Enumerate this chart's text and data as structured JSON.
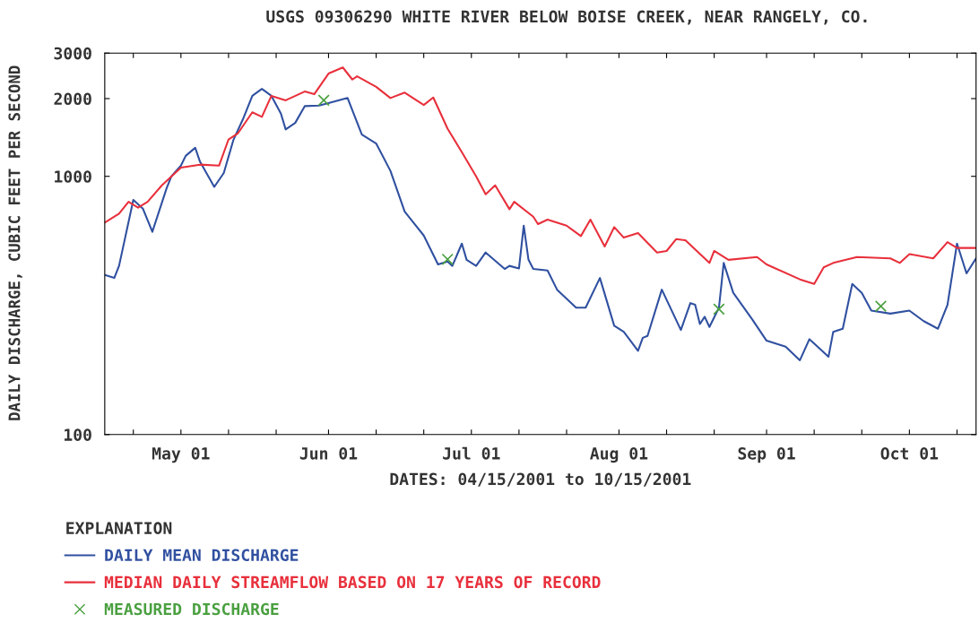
{
  "chart_data": {
    "type": "line",
    "title": "USGS 09306290 WHITE RIVER BELOW BOISE CREEK, NEAR RANGELY, CO.",
    "xlabel": "DATES: 04/15/2001 to 10/15/2001",
    "ylabel": "DAILY DISCHARGE, CUBIC FEET PER SECOND",
    "legend_title": "EXPLANATION",
    "legend": "bottom",
    "grid": false,
    "log": "y",
    "xlim": [
      "2001-04-15",
      "2001-10-15"
    ],
    "xticks": [
      {
        "value": "2001-04-21",
        "label": null
      },
      {
        "value": "2001-05-01",
        "label": "May 01"
      },
      {
        "value": "2001-05-11",
        "label": null
      },
      {
        "value": "2001-05-21",
        "label": null
      },
      {
        "value": "2001-06-01",
        "label": "Jun 01"
      },
      {
        "value": "2001-06-11",
        "label": null
      },
      {
        "value": "2001-06-21",
        "label": null
      },
      {
        "value": "2001-07-01",
        "label": "Jul 01"
      },
      {
        "value": "2001-07-11",
        "label": null
      },
      {
        "value": "2001-07-21",
        "label": null
      },
      {
        "value": "2001-08-01",
        "label": "Aug 01"
      },
      {
        "value": "2001-08-11",
        "label": null
      },
      {
        "value": "2001-08-21",
        "label": null
      },
      {
        "value": "2001-09-01",
        "label": "Sep 01"
      },
      {
        "value": "2001-09-11",
        "label": null
      },
      {
        "value": "2001-09-21",
        "label": null
      },
      {
        "value": "2001-10-01",
        "label": "Oct 01"
      },
      {
        "value": "2001-10-11",
        "label": null
      }
    ],
    "ylim": [
      100,
      3000
    ],
    "yticks": [
      100,
      1000,
      2000,
      3000
    ],
    "series": [
      {
        "name": "DAILY MEAN DISCHARGE",
        "color": "#3050a0",
        "x": [
          "2001-04-15",
          "2001-04-17",
          "2001-04-18",
          "2001-04-21",
          "2001-04-23",
          "2001-04-25",
          "2001-04-28",
          "2001-04-29",
          "2001-05-01",
          "2001-05-02",
          "2001-05-04",
          "2001-05-05",
          "2001-05-08",
          "2001-05-10",
          "2001-05-12",
          "2001-05-14",
          "2001-05-16",
          "2001-05-18",
          "2001-05-20",
          "2001-05-22",
          "2001-05-23",
          "2001-05-25",
          "2001-05-27",
          "2001-05-30",
          "2001-06-01",
          "2001-06-05",
          "2001-06-08",
          "2001-06-11",
          "2001-06-14",
          "2001-06-17",
          "2001-06-21",
          "2001-06-24",
          "2001-06-26",
          "2001-06-27",
          "2001-06-29",
          "2001-06-30",
          "2001-07-02",
          "2001-07-04",
          "2001-07-08",
          "2001-07-09",
          "2001-07-11",
          "2001-07-12",
          "2001-07-13",
          "2001-07-14",
          "2001-07-17",
          "2001-07-19",
          "2001-07-23",
          "2001-07-25",
          "2001-07-28",
          "2001-07-31",
          "2001-08-02",
          "2001-08-05",
          "2001-08-06",
          "2001-08-07",
          "2001-08-10",
          "2001-08-14",
          "2001-08-16",
          "2001-08-17",
          "2001-08-18",
          "2001-08-19",
          "2001-08-20",
          "2001-08-22",
          "2001-08-23",
          "2001-08-25",
          "2001-08-29",
          "2001-09-01",
          "2001-09-05",
          "2001-09-08",
          "2001-09-10",
          "2001-09-11",
          "2001-09-14",
          "2001-09-15",
          "2001-09-17",
          "2001-09-19",
          "2001-09-21",
          "2001-09-23",
          "2001-09-27",
          "2001-10-01",
          "2001-10-04",
          "2001-10-07",
          "2001-10-09",
          "2001-10-11",
          "2001-10-13",
          "2001-10-15"
        ],
        "values": [
          415,
          404,
          450,
          810,
          750,
          610,
          900,
          1000,
          1100,
          1200,
          1290,
          1140,
          910,
          1030,
          1380,
          1660,
          2050,
          2180,
          2050,
          1750,
          1520,
          1610,
          1870,
          1880,
          1920,
          2010,
          1450,
          1340,
          1050,
          730,
          590,
          456,
          468,
          450,
          549,
          475,
          450,
          507,
          438,
          450,
          440,
          644,
          475,
          438,
          432,
          364,
          310,
          310,
          404,
          264,
          250,
          211,
          237,
          241,
          364,
          254,
          323,
          318,
          268,
          286,
          261,
          310,
          462,
          354,
          279,
          231,
          219,
          194,
          234,
          225,
          200,
          250,
          257,
          383,
          354,
          302,
          294,
          302,
          275,
          257,
          318,
          549,
          421,
          481
        ]
      },
      {
        "name": "MEDIAN DAILY STREAMFLOW BASED ON 17 YEARS OF RECORD",
        "color": "#e8303c",
        "x": [
          "2001-04-15",
          "2001-04-18",
          "2001-04-20",
          "2001-04-22",
          "2001-04-24",
          "2001-04-27",
          "2001-05-01",
          "2001-05-05",
          "2001-05-09",
          "2001-05-11",
          "2001-05-13",
          "2001-05-16",
          "2001-05-18",
          "2001-05-20",
          "2001-05-23",
          "2001-05-27",
          "2001-05-29",
          "2001-06-01",
          "2001-06-04",
          "2001-06-06",
          "2001-06-07",
          "2001-06-11",
          "2001-06-14",
          "2001-06-17",
          "2001-06-21",
          "2001-06-23",
          "2001-06-26",
          "2001-06-29",
          "2001-07-02",
          "2001-07-04",
          "2001-07-06",
          "2001-07-09",
          "2001-07-10",
          "2001-07-14",
          "2001-07-15",
          "2001-07-17",
          "2001-07-21",
          "2001-07-24",
          "2001-07-26",
          "2001-07-29",
          "2001-07-31",
          "2001-08-02",
          "2001-08-05",
          "2001-08-09",
          "2001-08-11",
          "2001-08-13",
          "2001-08-15",
          "2001-08-20",
          "2001-08-21",
          "2001-08-24",
          "2001-08-30",
          "2001-09-01",
          "2001-09-08",
          "2001-09-11",
          "2001-09-13",
          "2001-09-15",
          "2001-09-20",
          "2001-09-27",
          "2001-09-29",
          "2001-10-01",
          "2001-10-06",
          "2001-10-09",
          "2001-10-11",
          "2001-10-15"
        ],
        "values": [
          662,
          717,
          797,
          756,
          797,
          923,
          1080,
          1110,
          1100,
          1390,
          1470,
          1770,
          1700,
          2050,
          1970,
          2130,
          2080,
          2500,
          2640,
          2370,
          2440,
          2220,
          2010,
          2110,
          1890,
          2020,
          1530,
          1240,
          1000,
          852,
          923,
          746,
          797,
          698,
          653,
          680,
          644,
          587,
          680,
          535,
          636,
          579,
          603,
          507,
          514,
          571,
          565,
          462,
          514,
          475,
          487,
          456,
          399,
          383,
          444,
          462,
          487,
          481,
          462,
          500,
          481,
          556,
          528,
          528
        ]
      },
      {
        "name": "MEASURED DISCHARGE",
        "type": "scatter",
        "color": "#4aa040",
        "marker": "cross",
        "x": [
          "2001-05-31",
          "2001-06-26",
          "2001-08-22",
          "2001-09-25"
        ],
        "values": [
          1970,
          477,
          306,
          314
        ]
      }
    ]
  }
}
